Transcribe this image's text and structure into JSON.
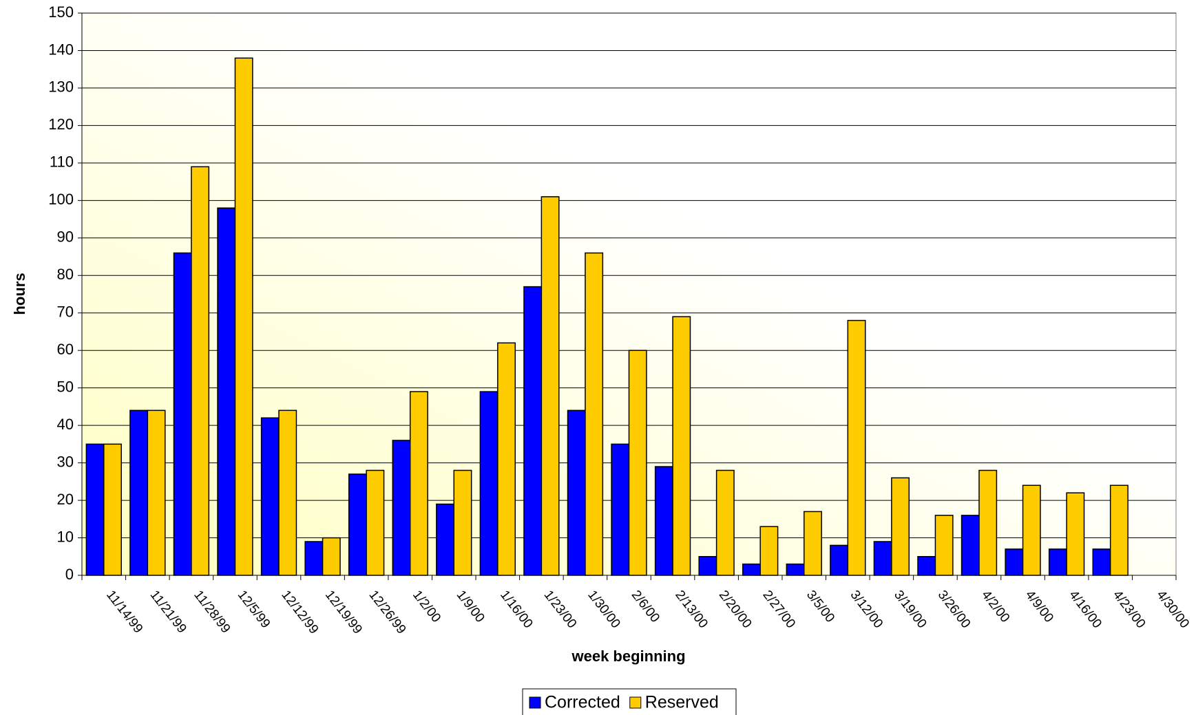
{
  "chart_data": {
    "type": "bar",
    "xlabel": "week beginning",
    "ylabel": "hours",
    "categories": [
      "11/14/99",
      "11/21/99",
      "11/28/99",
      "12/5/99",
      "12/12/99",
      "12/19/99",
      "12/26/99",
      "1/2/00",
      "1/9/00",
      "1/16/00",
      "1/23/00",
      "1/30/00",
      "2/6/00",
      "2/13/00",
      "2/20/00",
      "2/27/00",
      "3/5/00",
      "3/12/00",
      "3/19/00",
      "3/26/00",
      "4/2/00",
      "4/9/00",
      "4/16/00",
      "4/23/00",
      "4/30/00"
    ],
    "series": [
      {
        "name": "Corrected",
        "color": "#0000ff",
        "values": [
          35,
          44,
          86,
          98,
          42,
          9,
          27,
          36,
          19,
          49,
          77,
          44,
          35,
          29,
          5,
          3,
          3,
          8,
          9,
          5,
          16,
          7,
          7,
          7,
          null
        ]
      },
      {
        "name": "Reserved",
        "color": "#ffcc00",
        "values": [
          35,
          44,
          109,
          138,
          44,
          10,
          28,
          49,
          28,
          62,
          101,
          86,
          60,
          69,
          28,
          13,
          17,
          68,
          26,
          16,
          28,
          24,
          22,
          24,
          null
        ]
      }
    ],
    "ylim": [
      0,
      150
    ],
    "yticks": [
      0,
      10,
      20,
      30,
      40,
      50,
      60,
      70,
      80,
      90,
      100,
      110,
      120,
      130,
      140,
      150
    ],
    "grid": true,
    "legend": "bottom"
  }
}
